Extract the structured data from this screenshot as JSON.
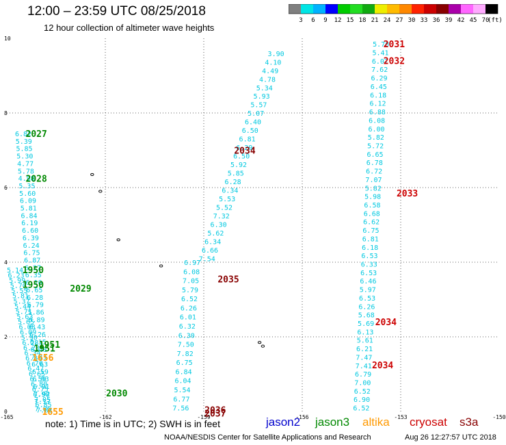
{
  "title": "12:00 – 23:59 UTC 08/25/2018",
  "subtitle": "12 hour collection of altimeter wave heights",
  "colorbar": {
    "colors": [
      "#7f7f7f",
      "#00e5e5",
      "#00b2ff",
      "#0000ff",
      "#00cc00",
      "#22dd22",
      "#11aa11",
      "#eeee00",
      "#ffbb00",
      "#ff8800",
      "#ff2200",
      "#cc0000",
      "#880000",
      "#aa00aa",
      "#ff66ff",
      "#ffaaff",
      "#000000"
    ],
    "labels": [
      "3",
      "6",
      "9",
      "12",
      "15",
      "18",
      "21",
      "24",
      "27",
      "30",
      "33",
      "36",
      "39",
      "42",
      "45",
      "70"
    ],
    "unit": "(ft)"
  },
  "axes": {
    "x_labels": [
      "-165",
      "-162",
      "-159",
      "-156",
      "-153",
      "-150"
    ],
    "y_labels": [
      "0",
      "2",
      "4",
      "6",
      "8",
      "10"
    ],
    "xlim": [
      -165,
      -150
    ],
    "ylim": [
      0,
      10
    ]
  },
  "colors": {
    "swh": "#00c8e0",
    "jason2": "#0000cc",
    "jason3": "#008800",
    "altika": "#ff9900",
    "cryosat": "#cc0000",
    "s3a": "#880000"
  },
  "chart_data": {
    "type": "scatter",
    "tracks": [
      {
        "lon": [
          -164.5,
          -163.9
        ],
        "lat": [
          7.45,
          0.08
        ],
        "values": [
          "6.82",
          "5.39",
          "5.85",
          "5.30",
          "4.77",
          "5.78",
          "4.98",
          "5.35",
          "5.60",
          "6.09",
          "5.81",
          "6.84",
          "6.19",
          "6.60",
          "6.39",
          "6.24",
          "6.75",
          "6.87",
          "6.27",
          "6.35",
          "6.10",
          "6.65",
          "6.28",
          "6.79",
          "5.86",
          "6.89",
          "6.43",
          "6.26",
          "6.15",
          "6.48",
          "7.11",
          "6.63",
          "6.59",
          "6.93",
          "6.91",
          "7.92",
          "7.17",
          "7.85"
        ]
      },
      {
        "lon": [
          -164.75,
          -163.85
        ],
        "lat": [
          3.8,
          0.05
        ],
        "values": [
          "5.14",
          "6.23",
          "5.99",
          "5.70",
          "5.55",
          "5.81",
          "5.37",
          "5.44",
          "5.71",
          "5.63",
          "5.65",
          "6.08",
          "6.09",
          "5.90",
          "6.28",
          "6.20",
          "6.34",
          "6.80",
          "6.76",
          "6.47",
          "6.65",
          "6.59",
          "6.80",
          "6.75",
          "6.90",
          "7.05",
          "6.85",
          "7.01"
        ]
      },
      {
        "lon": [
          -159.35,
          -159.7
        ],
        "lat": [
          4.0,
          0.1
        ],
        "values": [
          "6.97",
          "6.08",
          "7.05",
          "5.79",
          "6.52",
          "6.26",
          "6.01",
          "6.32",
          "6.30",
          "7.50",
          "7.82",
          "6.75",
          "6.84",
          "6.04",
          "5.54",
          "6.77",
          "7.56"
        ]
      },
      {
        "lon": [
          -156.8,
          -158.9
        ],
        "lat": [
          9.6,
          4.1
        ],
        "values": [
          "3.90",
          "4.10",
          "4.49",
          "4.78",
          "5.34",
          "5.93",
          "5.57",
          "5.07",
          "6.40",
          "6.50",
          "6.81",
          "6.29",
          "6.50",
          "5.92",
          "5.85",
          "6.28",
          "6.34",
          "5.53",
          "5.52",
          "7.32",
          "6.30",
          "5.62",
          "6.34",
          "6.66",
          "7.54"
        ]
      },
      {
        "lon": [
          -153.6,
          -154.2
        ],
        "lat": [
          9.85,
          0.1
        ],
        "values": [
          "5.70",
          "5.41",
          "6.07",
          "7.62",
          "6.29",
          "6.45",
          "6.18",
          "6.12",
          "6.88",
          "6.08",
          "6.00",
          "5.82",
          "5.72",
          "6.65",
          "6.78",
          "6.72",
          "7.07",
          "5.82",
          "5.98",
          "6.58",
          "6.68",
          "6.62",
          "6.75",
          "6.81",
          "6.18",
          "6.53",
          "6.33",
          "6.53",
          "6.46",
          "5.97",
          "6.53",
          "6.26",
          "5.68",
          "5.69",
          "6.13",
          "5.61",
          "6.21",
          "7.47",
          "7.41",
          "6.79",
          "7.00",
          "6.52",
          "6.90",
          "6.52"
        ]
      }
    ],
    "time_labels": [
      {
        "text": "2027",
        "lon": -164.1,
        "lat": 7.45,
        "sat": "jason3"
      },
      {
        "text": "2028",
        "lon": -164.1,
        "lat": 6.25,
        "sat": "jason3"
      },
      {
        "text": "1950",
        "lon": -164.2,
        "lat": 3.8,
        "sat": "jason3"
      },
      {
        "text": "1950",
        "lon": -164.2,
        "lat": 3.4,
        "sat": "jason3"
      },
      {
        "text": "2029",
        "lon": -162.75,
        "lat": 3.3,
        "sat": "jason3"
      },
      {
        "text": "1951",
        "lon": -163.7,
        "lat": 1.8,
        "sat": "jason3"
      },
      {
        "text": "1951",
        "lon": -163.85,
        "lat": 1.7,
        "sat": "jason3"
      },
      {
        "text": "1656",
        "lon": -163.9,
        "lat": 1.45,
        "sat": "altika"
      },
      {
        "text": "1655",
        "lon": -163.6,
        "lat": 0.0,
        "sat": "altika"
      },
      {
        "text": "2030",
        "lon": -161.65,
        "lat": 0.5,
        "sat": "jason3"
      },
      {
        "text": "2034",
        "lon": -157.75,
        "lat": 7.0,
        "sat": "s3a"
      },
      {
        "text": "2035",
        "lon": -158.25,
        "lat": 3.55,
        "sat": "s3a"
      },
      {
        "text": "2036",
        "lon": -158.65,
        "lat": 0.05,
        "sat": "s3a"
      },
      {
        "text": "2037",
        "lon": -158.65,
        "lat": -0.05,
        "sat": "s3a"
      },
      {
        "text": "2031",
        "lon": -153.2,
        "lat": 9.85,
        "sat": "cryosat"
      },
      {
        "text": "2032",
        "lon": -153.2,
        "lat": 9.4,
        "sat": "cryosat"
      },
      {
        "text": "2033",
        "lon": -152.8,
        "lat": 5.85,
        "sat": "cryosat"
      },
      {
        "text": "2034",
        "lon": -153.45,
        "lat": 2.4,
        "sat": "cryosat"
      },
      {
        "text": "2034",
        "lon": -153.55,
        "lat": 1.25,
        "sat": "cryosat"
      }
    ],
    "islands": [
      {
        "lon": -162.4,
        "lat": 6.35
      },
      {
        "lon": -162.15,
        "lat": 5.9
      },
      {
        "lon": -161.6,
        "lat": 4.6
      },
      {
        "lon": -160.3,
        "lat": 3.9
      },
      {
        "lon": -157.3,
        "lat": 1.85
      },
      {
        "lon": -157.2,
        "lat": 1.75
      }
    ]
  },
  "legend": {
    "note": "note: 1) Time is in UTC; 2) SWH is in feet",
    "items": [
      "jason2",
      "jason3",
      "altika",
      "cryosat",
      "s3a"
    ]
  },
  "footer": {
    "credit": "NOAA/NESDIS Center for Satellite Applications and Research",
    "timestamp": "Aug 26 12:27:57 UTC 2018"
  }
}
